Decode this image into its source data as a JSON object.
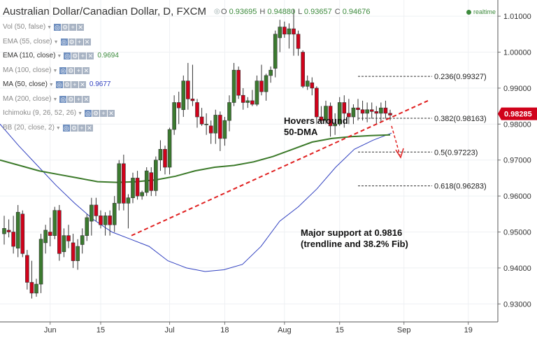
{
  "header": {
    "title": "Australian Dollar/Canadian Dollar, D, FXCM",
    "ohlc": [
      {
        "label": "O",
        "value": "0.93695"
      },
      {
        "label": "H",
        "value": "0.94880"
      },
      {
        "label": "L",
        "value": "0.93657"
      },
      {
        "label": "C",
        "value": "0.94676"
      }
    ],
    "realtime": "realtime"
  },
  "indicators": [
    {
      "label": "Vol (50, false)",
      "value": ""
    },
    {
      "label": "EMA (55, close)",
      "value": ""
    },
    {
      "label": "EMA (110, close)",
      "value": "0.9694",
      "dark": true,
      "color": "#3c8a3c"
    },
    {
      "label": "MA (100, close)",
      "value": ""
    },
    {
      "label": "MA (50, close)",
      "value": "0.9677",
      "dark": true,
      "color": "#3040c0"
    },
    {
      "label": "MA (200, close)",
      "value": ""
    },
    {
      "label": "Ichimoku (9, 26, 52, 26)",
      "value": ""
    },
    {
      "label": "BB (20, close, 2)",
      "value": ""
    }
  ],
  "chart_data": {
    "type": "candlestick",
    "y_axis": {
      "range": [
        0.925,
        1.0145
      ],
      "ticks": [
        "1.01000",
        "1.00000",
        "0.99000",
        "0.98000",
        "0.97000",
        "0.96000",
        "0.95000",
        "0.94000",
        "0.93000"
      ],
      "position": "right"
    },
    "x_axis": {
      "ticks": [
        "Jun",
        "15",
        "Jul",
        "18",
        "Aug",
        "15",
        "Sep",
        "19"
      ]
    },
    "current_price": {
      "label": "0.98285",
      "color": "#d0021b"
    },
    "candles": [
      {
        "o": 0.9495,
        "h": 0.9545,
        "l": 0.9465,
        "c": 0.951
      },
      {
        "o": 0.9505,
        "h": 0.9535,
        "l": 0.9485,
        "c": 0.95
      },
      {
        "o": 0.95,
        "h": 0.9545,
        "l": 0.944,
        "c": 0.946
      },
      {
        "o": 0.9455,
        "h": 0.9575,
        "l": 0.943,
        "c": 0.9555
      },
      {
        "o": 0.955,
        "h": 0.956,
        "l": 0.943,
        "c": 0.944
      },
      {
        "o": 0.9435,
        "h": 0.945,
        "l": 0.934,
        "c": 0.936
      },
      {
        "o": 0.936,
        "h": 0.942,
        "l": 0.9315,
        "c": 0.933
      },
      {
        "o": 0.933,
        "h": 0.937,
        "l": 0.932,
        "c": 0.9355
      },
      {
        "o": 0.9355,
        "h": 0.9495,
        "l": 0.933,
        "c": 0.948
      },
      {
        "o": 0.947,
        "h": 0.952,
        "l": 0.944,
        "c": 0.9505
      },
      {
        "o": 0.95,
        "h": 0.954,
        "l": 0.946,
        "c": 0.949
      },
      {
        "o": 0.949,
        "h": 0.957,
        "l": 0.948,
        "c": 0.956
      },
      {
        "o": 0.956,
        "h": 0.9575,
        "l": 0.942,
        "c": 0.944
      },
      {
        "o": 0.9445,
        "h": 0.951,
        "l": 0.943,
        "c": 0.949
      },
      {
        "o": 0.949,
        "h": 0.952,
        "l": 0.9455,
        "c": 0.9475
      },
      {
        "o": 0.947,
        "h": 0.9495,
        "l": 0.94,
        "c": 0.942
      },
      {
        "o": 0.942,
        "h": 0.948,
        "l": 0.9395,
        "c": 0.946
      },
      {
        "o": 0.9465,
        "h": 0.951,
        "l": 0.944,
        "c": 0.949
      },
      {
        "o": 0.949,
        "h": 0.955,
        "l": 0.9475,
        "c": 0.954
      },
      {
        "o": 0.953,
        "h": 0.9595,
        "l": 0.949,
        "c": 0.9575
      },
      {
        "o": 0.9575,
        "h": 0.9595,
        "l": 0.953,
        "c": 0.9545
      },
      {
        "o": 0.9545,
        "h": 0.956,
        "l": 0.951,
        "c": 0.952
      },
      {
        "o": 0.952,
        "h": 0.9555,
        "l": 0.949,
        "c": 0.9545
      },
      {
        "o": 0.9545,
        "h": 0.956,
        "l": 0.949,
        "c": 0.952
      },
      {
        "o": 0.952,
        "h": 0.96,
        "l": 0.95,
        "c": 0.958
      },
      {
        "o": 0.958,
        "h": 0.97,
        "l": 0.956,
        "c": 0.969
      },
      {
        "o": 0.969,
        "h": 0.9715,
        "l": 0.956,
        "c": 0.958
      },
      {
        "o": 0.958,
        "h": 0.9605,
        "l": 0.951,
        "c": 0.9595
      },
      {
        "o": 0.9595,
        "h": 0.9665,
        "l": 0.958,
        "c": 0.965
      },
      {
        "o": 0.965,
        "h": 0.967,
        "l": 0.959,
        "c": 0.96
      },
      {
        "o": 0.96,
        "h": 0.9615,
        "l": 0.959,
        "c": 0.961
      },
      {
        "o": 0.961,
        "h": 0.968,
        "l": 0.96,
        "c": 0.967
      },
      {
        "o": 0.9665,
        "h": 0.968,
        "l": 0.96,
        "c": 0.9615
      },
      {
        "o": 0.9615,
        "h": 0.971,
        "l": 0.96,
        "c": 0.97
      },
      {
        "o": 0.97,
        "h": 0.9755,
        "l": 0.967,
        "c": 0.973
      },
      {
        "o": 0.973,
        "h": 0.974,
        "l": 0.966,
        "c": 0.968
      },
      {
        "o": 0.968,
        "h": 0.979,
        "l": 0.966,
        "c": 0.9785
      },
      {
        "o": 0.9785,
        "h": 0.988,
        "l": 0.977,
        "c": 0.986
      },
      {
        "o": 0.986,
        "h": 0.989,
        "l": 0.98,
        "c": 0.9845
      },
      {
        "o": 0.984,
        "h": 0.9935,
        "l": 0.982,
        "c": 0.992
      },
      {
        "o": 0.992,
        "h": 0.997,
        "l": 0.984,
        "c": 0.987
      },
      {
        "o": 0.987,
        "h": 0.9965,
        "l": 0.985,
        "c": 0.9865
      },
      {
        "o": 0.986,
        "h": 0.987,
        "l": 0.979,
        "c": 0.982
      },
      {
        "o": 0.982,
        "h": 0.9845,
        "l": 0.9795,
        "c": 0.98
      },
      {
        "o": 0.98,
        "h": 0.983,
        "l": 0.977,
        "c": 0.98
      },
      {
        "o": 0.9795,
        "h": 0.981,
        "l": 0.9745,
        "c": 0.9775
      },
      {
        "o": 0.9775,
        "h": 0.984,
        "l": 0.9745,
        "c": 0.9825
      },
      {
        "o": 0.9825,
        "h": 0.9835,
        "l": 0.9725,
        "c": 0.976
      },
      {
        "o": 0.976,
        "h": 0.982,
        "l": 0.974,
        "c": 0.981
      },
      {
        "o": 0.981,
        "h": 0.988,
        "l": 0.978,
        "c": 0.986
      },
      {
        "o": 0.986,
        "h": 0.997,
        "l": 0.985,
        "c": 0.995
      },
      {
        "o": 0.995,
        "h": 0.996,
        "l": 0.987,
        "c": 0.988
      },
      {
        "o": 0.988,
        "h": 0.99,
        "l": 0.984,
        "c": 0.986
      },
      {
        "o": 0.986,
        "h": 0.9875,
        "l": 0.9845,
        "c": 0.9865
      },
      {
        "o": 0.9865,
        "h": 0.9895,
        "l": 0.985,
        "c": 0.9855
      },
      {
        "o": 0.9855,
        "h": 0.9935,
        "l": 0.985,
        "c": 0.992
      },
      {
        "o": 0.992,
        "h": 0.9965,
        "l": 0.988,
        "c": 0.989
      },
      {
        "o": 0.989,
        "h": 0.994,
        "l": 0.9865,
        "c": 0.9935
      },
      {
        "o": 0.9935,
        "h": 0.996,
        "l": 0.9915,
        "c": 0.995
      },
      {
        "o": 0.9955,
        "h": 1.006,
        "l": 0.993,
        "c": 1.005
      },
      {
        "o": 1.004,
        "h": 1.009,
        "l": 1.0,
        "c": 1.007
      },
      {
        "o": 1.007,
        "h": 1.0085,
        "l": 1.004,
        "c": 1.005
      },
      {
        "o": 1.005,
        "h": 1.008,
        "l": 1.001,
        "c": 1.0065
      },
      {
        "o": 1.0065,
        "h": 1.012,
        "l": 0.999,
        "c": 1.005
      },
      {
        "o": 1.005,
        "h": 1.006,
        "l": 0.999,
        "c": 1.001
      },
      {
        "o": 1.0,
        "h": 1.0005,
        "l": 0.99,
        "c": 0.9905
      },
      {
        "o": 0.9905,
        "h": 0.9935,
        "l": 0.9895,
        "c": 0.992
      },
      {
        "o": 0.9915,
        "h": 0.993,
        "l": 0.988,
        "c": 0.99
      },
      {
        "o": 0.99,
        "h": 0.9905,
        "l": 0.98,
        "c": 0.982
      },
      {
        "o": 0.982,
        "h": 0.985,
        "l": 0.98,
        "c": 0.981
      },
      {
        "o": 0.981,
        "h": 0.9865,
        "l": 0.98,
        "c": 0.985
      },
      {
        "o": 0.985,
        "h": 0.986,
        "l": 0.9765,
        "c": 0.9795
      },
      {
        "o": 0.9795,
        "h": 0.983,
        "l": 0.977,
        "c": 0.98
      },
      {
        "o": 0.98,
        "h": 0.9875,
        "l": 0.9795,
        "c": 0.986
      },
      {
        "o": 0.986,
        "h": 0.988,
        "l": 0.979,
        "c": 0.983
      },
      {
        "o": 0.983,
        "h": 0.987,
        "l": 0.98,
        "c": 0.982
      },
      {
        "o": 0.982,
        "h": 0.9855,
        "l": 0.98,
        "c": 0.9845
      },
      {
        "o": 0.9845,
        "h": 0.987,
        "l": 0.981,
        "c": 0.984
      },
      {
        "o": 0.984,
        "h": 0.9865,
        "l": 0.981,
        "c": 0.983
      },
      {
        "o": 0.983,
        "h": 0.986,
        "l": 0.9805,
        "c": 0.984
      },
      {
        "o": 0.984,
        "h": 0.986,
        "l": 0.9815,
        "c": 0.9835
      },
      {
        "o": 0.9835,
        "h": 0.985,
        "l": 0.98,
        "c": 0.983
      },
      {
        "o": 0.983,
        "h": 0.986,
        "l": 0.9805,
        "c": 0.9845
      },
      {
        "o": 0.9845,
        "h": 0.9865,
        "l": 0.9815,
        "c": 0.983
      },
      {
        "o": 0.983,
        "h": 0.984,
        "l": 0.981,
        "c": 0.9825
      }
    ],
    "candle_x_start": 0,
    "series": [
      {
        "name": "MA (50, close)",
        "color": "#3040c0",
        "values": [
          0.98,
          0.974,
          0.9685,
          0.963,
          0.958,
          0.9535,
          0.95,
          0.948,
          0.946,
          0.942,
          0.94,
          0.939,
          0.9395,
          0.941,
          0.946,
          0.953,
          0.957,
          0.962,
          0.968,
          0.973,
          0.9755,
          0.9775
        ]
      },
      {
        "name": "EMA (110, close)",
        "color": "#3c7a2a",
        "values": [
          0.97,
          0.9685,
          0.967,
          0.966,
          0.965,
          0.964,
          0.9638,
          0.964,
          0.9645,
          0.9655,
          0.967,
          0.968,
          0.9685,
          0.9695,
          0.971,
          0.973,
          0.975,
          0.976,
          0.9765,
          0.9768,
          0.977
        ]
      }
    ],
    "fib_levels": [
      {
        "label": "0.236(0.99327)",
        "value": 0.99327
      },
      {
        "label": "0.382(0.98163)",
        "value": 0.98163
      },
      {
        "label": "0.5(0.97223)",
        "value": 0.97223
      },
      {
        "label": "0.618(0.96283)",
        "value": 0.96283
      }
    ],
    "trendline": {
      "from": 0.949,
      "to": 0.9865
    },
    "annotations": [
      {
        "lines": [
          "Hovers around",
          "50-DMA"
        ]
      },
      {
        "lines": [
          "Major support at 0.9816",
          "(trendline  and 38.2% Fib)"
        ]
      }
    ]
  }
}
